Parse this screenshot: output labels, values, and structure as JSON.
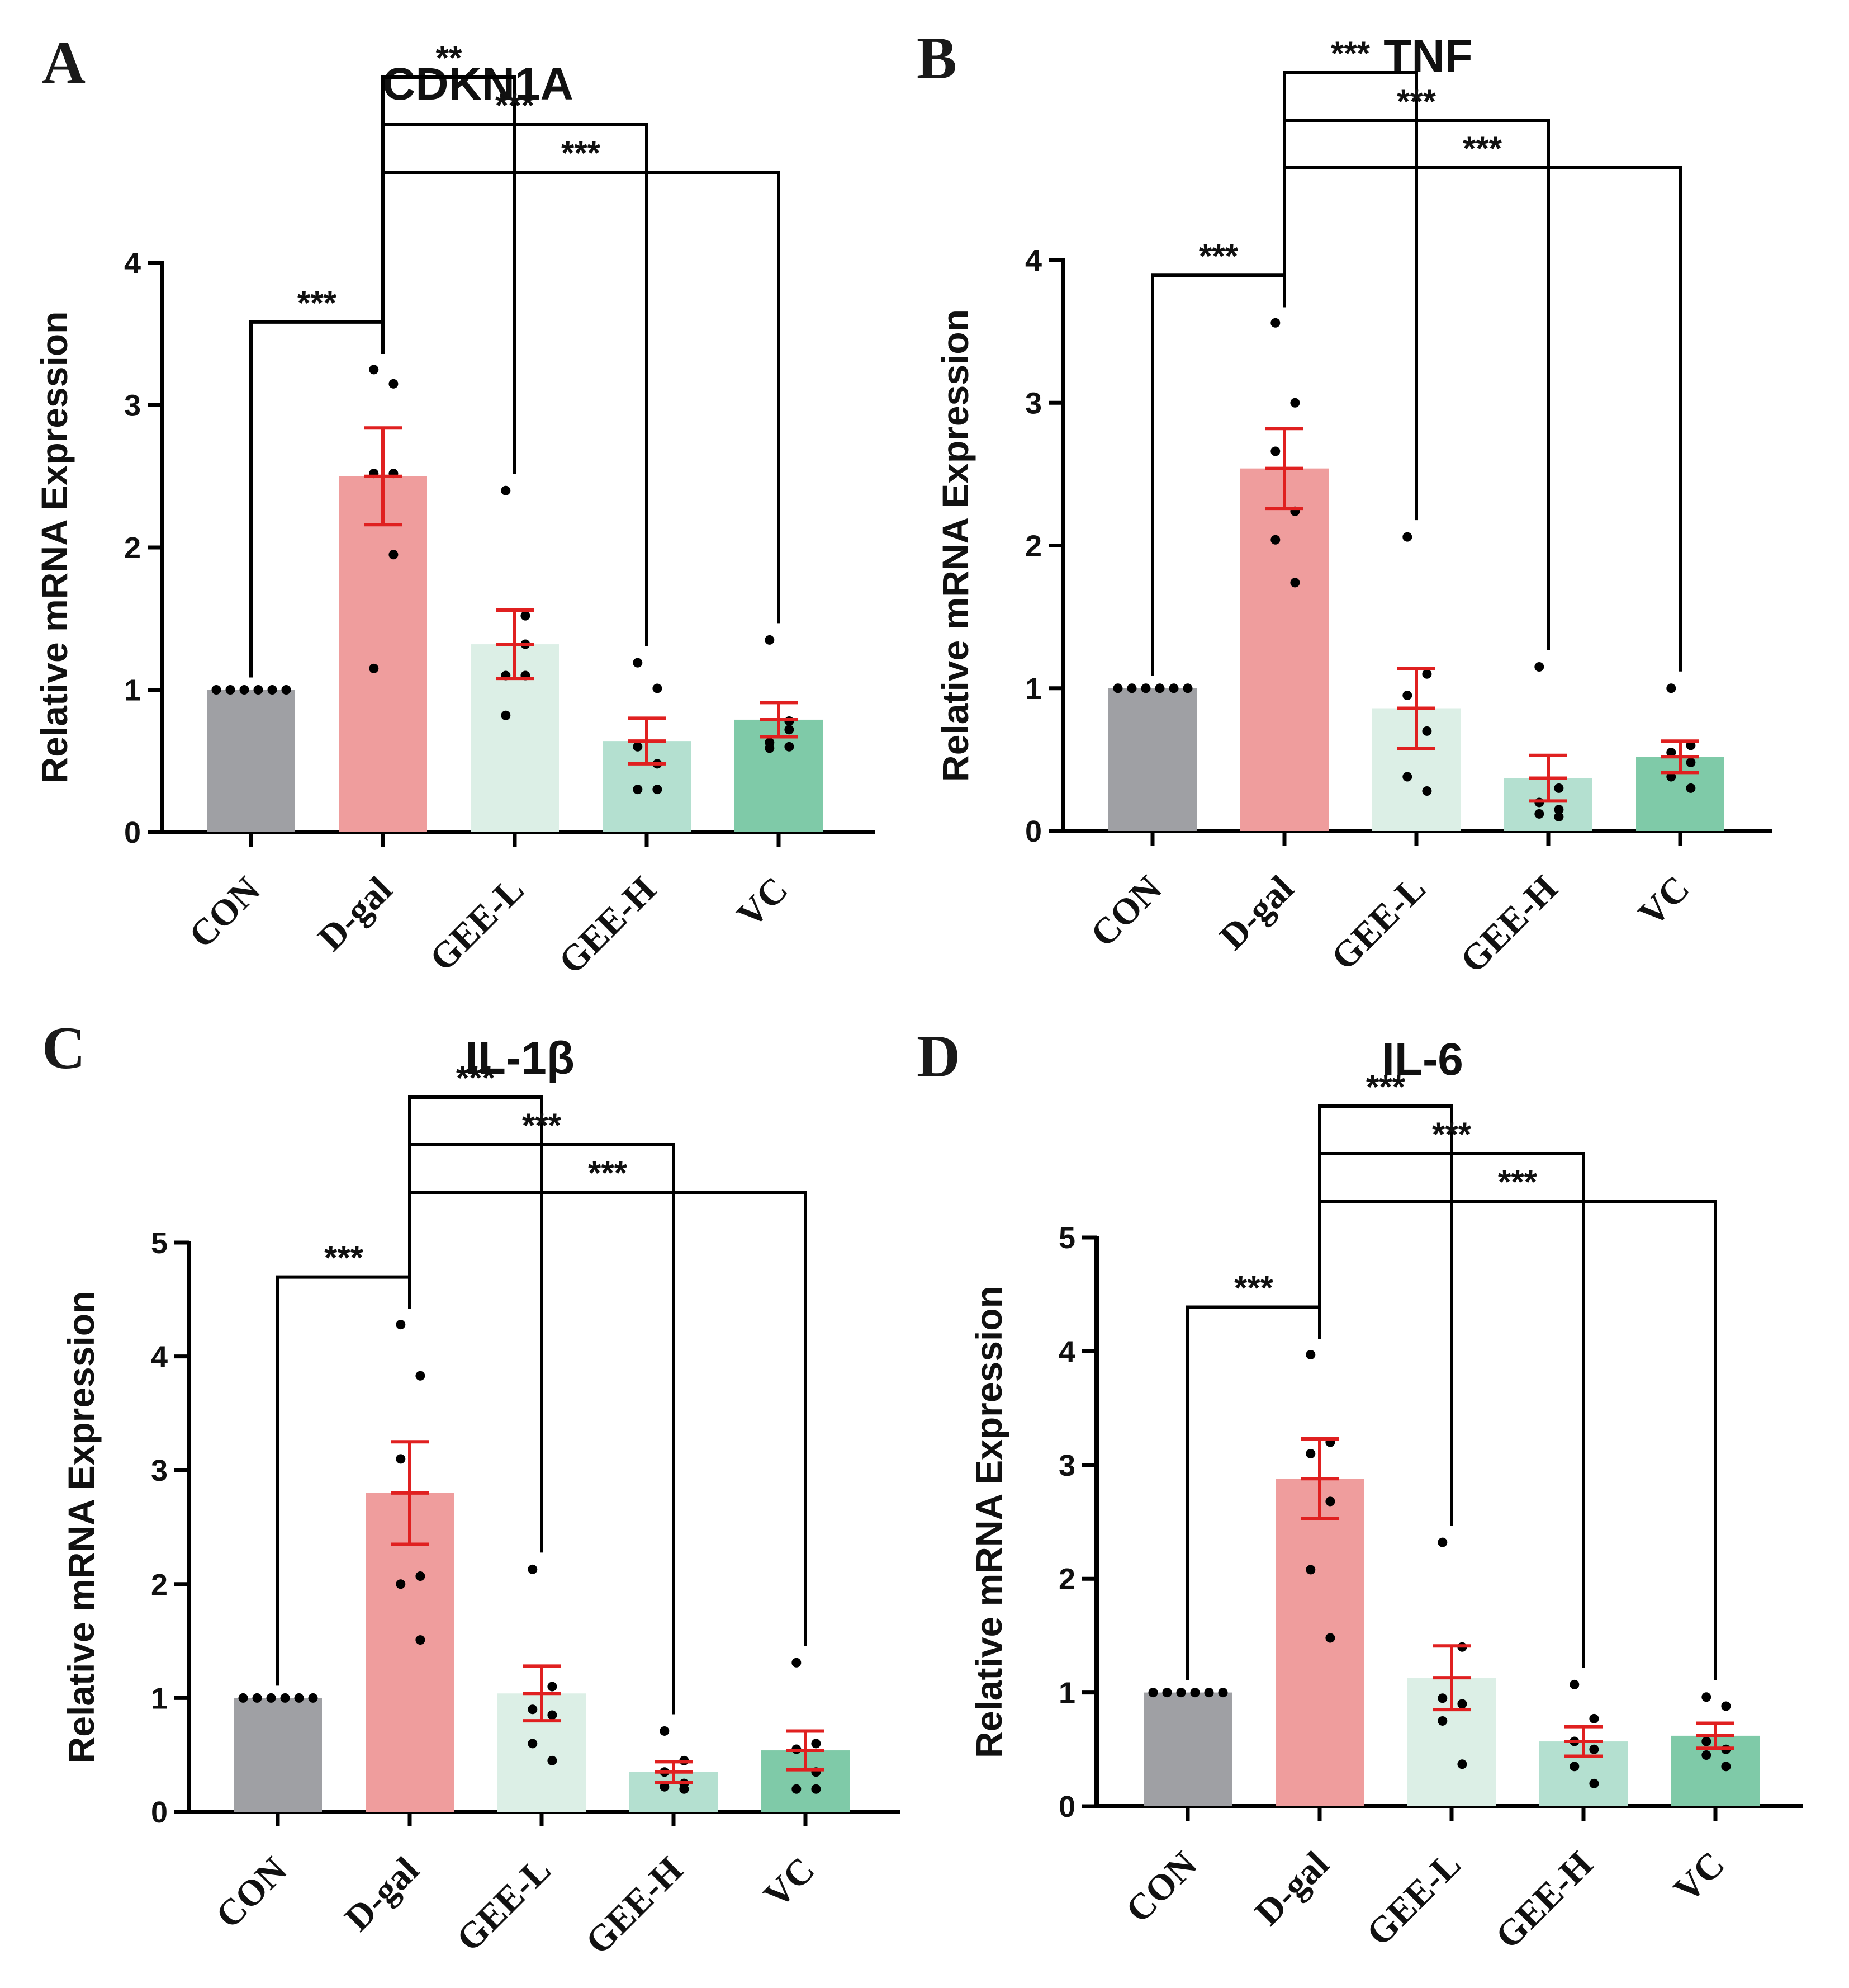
{
  "colors": {
    "CON": "#9fa0a4",
    "D-gal": "#ef9d9d",
    "GEE-L": "#dcefe6",
    "GEE-H": "#b4e0d0",
    "VC": "#7fcaa8",
    "error": "#e02020",
    "point": "#000000",
    "axis": "#000000"
  },
  "chart_data": [
    {
      "panel": "A",
      "type": "bar",
      "title": "CDKN1A",
      "ylabel": "Relative mRNA Expression",
      "xlabel": "",
      "categories": [
        "CON",
        "D-gal",
        "GEE-L",
        "GEE-H",
        "VC"
      ],
      "ylim": [
        0,
        4
      ],
      "yticks": [
        "0",
        "1",
        "2",
        "3",
        "4"
      ],
      "means": [
        1.0,
        2.5,
        1.32,
        0.64,
        0.79
      ],
      "sem": [
        0.0,
        0.34,
        0.24,
        0.16,
        0.12
      ],
      "points": [
        [
          1,
          1,
          1,
          1,
          1,
          1
        ],
        [
          3.25,
          3.15,
          2.52,
          1.95,
          1.15,
          2.52
        ],
        [
          2.4,
          1.52,
          1.1,
          1.1,
          0.82,
          1.32
        ],
        [
          1.19,
          1.01,
          0.6,
          0.48,
          0.3,
          0.3
        ],
        [
          1.35,
          0.72,
          0.63,
          0.6,
          0.59,
          0.78
        ]
      ],
      "comparisons": [
        {
          "from": "CON",
          "to": "D-gal",
          "label": "***"
        },
        {
          "from": "D-gal",
          "to": "GEE-L",
          "label": "**"
        },
        {
          "from": "D-gal",
          "to": "GEE-H",
          "label": "***"
        },
        {
          "from": "D-gal",
          "to": "VC",
          "label": "***"
        }
      ]
    },
    {
      "panel": "B",
      "type": "bar",
      "title": "TNF",
      "ylabel": "Relative mRNA Expression",
      "xlabel": "",
      "categories": [
        "CON",
        "D-gal",
        "GEE-L",
        "GEE-H",
        "VC"
      ],
      "ylim": [
        0,
        4
      ],
      "yticks": [
        "0",
        "1",
        "2",
        "3",
        "4"
      ],
      "means": [
        1.0,
        2.54,
        0.86,
        0.37,
        0.52
      ],
      "sem": [
        0.0,
        0.28,
        0.28,
        0.16,
        0.11
      ],
      "points": [
        [
          1,
          1,
          1,
          1,
          1,
          1
        ],
        [
          3.56,
          3.0,
          2.66,
          2.24,
          2.04,
          1.74
        ],
        [
          2.06,
          1.1,
          0.95,
          0.7,
          0.38,
          0.28
        ],
        [
          1.15,
          0.3,
          0.2,
          0.15,
          0.12,
          0.1
        ],
        [
          1.0,
          0.6,
          0.55,
          0.48,
          0.38,
          0.3
        ]
      ],
      "comparisons": [
        {
          "from": "CON",
          "to": "D-gal",
          "label": "***"
        },
        {
          "from": "D-gal",
          "to": "GEE-L",
          "label": "***"
        },
        {
          "from": "D-gal",
          "to": "GEE-H",
          "label": "***"
        },
        {
          "from": "D-gal",
          "to": "VC",
          "label": "***"
        }
      ]
    },
    {
      "panel": "C",
      "type": "bar",
      "title": "IL-1β",
      "ylabel": "Relative mRNA Expression",
      "xlabel": "",
      "categories": [
        "CON",
        "D-gal",
        "GEE-L",
        "GEE-H",
        "VC"
      ],
      "ylim": [
        0,
        5
      ],
      "yticks": [
        "0",
        "1",
        "2",
        "3",
        "4",
        "5"
      ],
      "means": [
        1.0,
        2.8,
        1.04,
        0.35,
        0.54
      ],
      "sem": [
        0.0,
        0.45,
        0.24,
        0.09,
        0.17
      ],
      "points": [
        [
          1,
          1,
          1,
          1,
          1,
          1
        ],
        [
          4.28,
          3.83,
          3.1,
          2.07,
          2.0,
          1.51
        ],
        [
          2.13,
          1.1,
          0.9,
          0.85,
          0.6,
          0.45
        ],
        [
          0.71,
          0.45,
          0.35,
          0.25,
          0.22,
          0.2
        ],
        [
          1.31,
          0.6,
          0.55,
          0.35,
          0.2,
          0.2
        ]
      ],
      "comparisons": [
        {
          "from": "CON",
          "to": "D-gal",
          "label": "***"
        },
        {
          "from": "D-gal",
          "to": "GEE-L",
          "label": "***"
        },
        {
          "from": "D-gal",
          "to": "GEE-H",
          "label": "***"
        },
        {
          "from": "D-gal",
          "to": "VC",
          "label": "***"
        }
      ]
    },
    {
      "panel": "D",
      "type": "bar",
      "title": "IL-6",
      "ylabel": "Relative mRNA Expression",
      "xlabel": "",
      "categories": [
        "CON",
        "D-gal",
        "GEE-L",
        "GEE-H",
        "VC"
      ],
      "ylim": [
        0,
        5
      ],
      "yticks": [
        "0",
        "1",
        "2",
        "3",
        "4",
        "5"
      ],
      "means": [
        1.0,
        2.88,
        1.13,
        0.57,
        0.62
      ],
      "sem": [
        0.0,
        0.35,
        0.28,
        0.13,
        0.11
      ],
      "points": [
        [
          1,
          1,
          1,
          1,
          1,
          1
        ],
        [
          3.97,
          3.2,
          3.1,
          2.68,
          2.08,
          1.48
        ],
        [
          2.32,
          1.4,
          0.95,
          0.9,
          0.75,
          0.37
        ],
        [
          1.07,
          0.77,
          0.57,
          0.5,
          0.35,
          0.2
        ],
        [
          0.96,
          0.88,
          0.57,
          0.5,
          0.45,
          0.35
        ]
      ],
      "comparisons": [
        {
          "from": "CON",
          "to": "D-gal",
          "label": "***"
        },
        {
          "from": "D-gal",
          "to": "GEE-L",
          "label": "***"
        },
        {
          "from": "D-gal",
          "to": "GEE-H",
          "label": "***"
        },
        {
          "from": "D-gal",
          "to": "VC",
          "label": "***"
        }
      ]
    }
  ]
}
